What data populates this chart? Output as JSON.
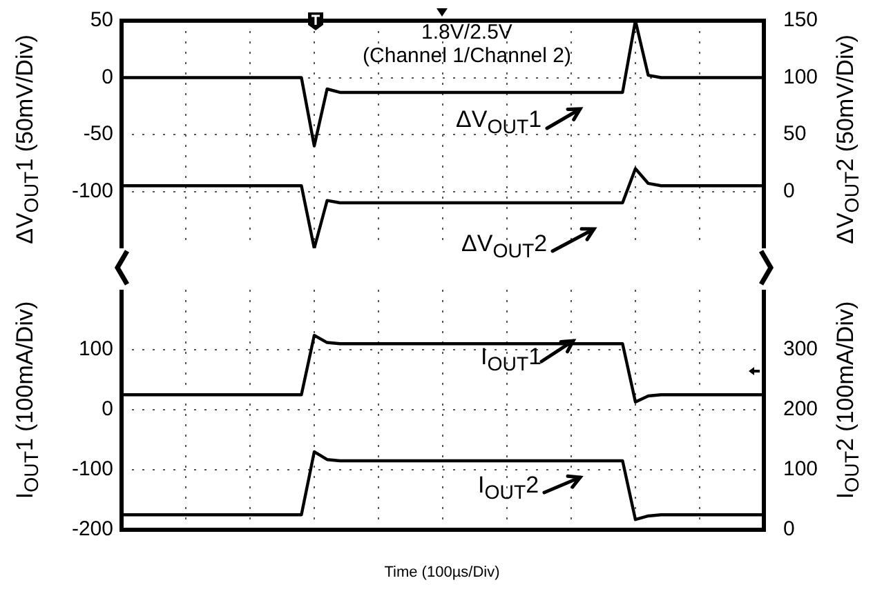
{
  "chart_data": [
    {
      "type": "line",
      "ylabel": "ΔV$_{OUT}$1 (50mV/Div)",
      "y2label": "ΔV$_{OUT}$2 (50mV/Div)",
      "annotations": [
        "1.8V/2.5V\n(Channel 1/Channel 2)"
      ],
      "categories": [
        null,
        null,
        null,
        null,
        null,
        null,
        null,
        null,
        null,
        null,
        null,
        null,
        null,
        null,
        null,
        null,
        null,
        null,
        null,
        null,
        null,
        null,
        null,
        null,
        null,
        null,
        null,
        null,
        null,
        null,
        null,
        null,
        null,
        null,
        null,
        null,
        null,
        null,
        null,
        null,
        null,
        null,
        null,
        null,
        null,
        null,
        null,
        null,
        null,
        null,
        null
      ],
      "series": [
        {
          "name": "ΔV$_{OUT}$1",
          "color": "#000000",
          "values": [
            0,
            0,
            0,
            0,
            0,
            0,
            0,
            0,
            0,
            0,
            0,
            0,
            0,
            0,
            0,
            -60,
            -10,
            -13,
            -13,
            -13,
            -13,
            -13,
            -13,
            -13,
            -13,
            -13,
            -13,
            -13,
            -13,
            -13,
            -13,
            -13,
            -13,
            -13,
            -13,
            -13,
            -13,
            -13,
            -13,
            -13,
            50,
            2,
            0,
            0,
            0,
            0,
            0,
            0,
            0,
            0,
            0
          ]
        },
        {
          "name": "ΔV$_{OUT}$2",
          "color": "#000000",
          "axis": "y2",
          "values": [
            5,
            5,
            5,
            5,
            5,
            5,
            5,
            5,
            5,
            5,
            5,
            5,
            5,
            5,
            5,
            -50,
            -8,
            -10,
            -10,
            -10,
            -10,
            -10,
            -10,
            -10,
            -10,
            -10,
            -10,
            -10,
            -10,
            -10,
            -10,
            -10,
            -10,
            -10,
            -10,
            -10,
            -10,
            -10,
            -10,
            -10,
            20,
            7,
            5,
            5,
            5,
            5,
            5,
            5,
            5,
            5,
            5
          ]
        }
      ],
      "ylim": [
        -150,
        50
      ],
      "yticks": [
        50,
        0,
        -50,
        -100
      ],
      "y2lim": [
        -50,
        150
      ],
      "y2ticks": [
        150,
        100,
        50,
        0
      ],
      "tick_labels": "y",
      "grid": true,
      "legend": "center",
      "marker": "none",
      "line_style": "solid"
    },
    {
      "type": "line",
      "xlabel": "Time (100µs/Div)",
      "ylabel": "I$_{OUT}$1 (100mA/Div)",
      "y2label": "I$_{OUT}$2 (100mA/Div)",
      "categories": [
        null,
        null,
        null,
        null,
        null,
        null,
        null,
        null,
        null,
        null,
        null,
        null,
        null,
        null,
        null,
        null,
        null,
        null,
        null,
        null,
        null,
        null,
        null,
        null,
        null,
        null,
        null,
        null,
        null,
        null,
        null,
        null,
        null,
        null,
        null,
        null,
        null,
        null,
        null,
        null,
        null,
        null,
        null,
        null,
        null,
        null,
        null,
        null,
        null,
        null,
        null
      ],
      "series": [
        {
          "name": "I$_{OUT}$1",
          "color": "#000000",
          "values": [
            25,
            25,
            25,
            25,
            25,
            25,
            25,
            25,
            25,
            25,
            25,
            25,
            25,
            25,
            25,
            124,
            112,
            110,
            110,
            110,
            110,
            110,
            110,
            110,
            110,
            110,
            110,
            110,
            110,
            110,
            110,
            110,
            110,
            110,
            110,
            110,
            110,
            110,
            110,
            110,
            13,
            23,
            25,
            25,
            25,
            25,
            25,
            25,
            25,
            25,
            25
          ]
        },
        {
          "name": "I$_{OUT}$2",
          "color": "#000000",
          "axis": "y2",
          "values": [
            25,
            25,
            25,
            25,
            25,
            25,
            25,
            25,
            25,
            25,
            25,
            25,
            25,
            25,
            25,
            130,
            117,
            115,
            115,
            115,
            115,
            115,
            115,
            115,
            115,
            115,
            115,
            115,
            115,
            115,
            115,
            115,
            115,
            115,
            115,
            115,
            115,
            115,
            115,
            115,
            17,
            23,
            25,
            25,
            25,
            25,
            25,
            25,
            25,
            25,
            25
          ]
        }
      ],
      "ylim": [
        -200,
        200
      ],
      "yticks": [
        100,
        0,
        -100,
        -200
      ],
      "y2lim": [
        0,
        400
      ],
      "y2ticks": [
        300,
        200,
        100,
        0
      ],
      "tick_labels": "y",
      "grid": true,
      "legend": "center",
      "marker": "none",
      "line_style": "solid"
    }
  ]
}
